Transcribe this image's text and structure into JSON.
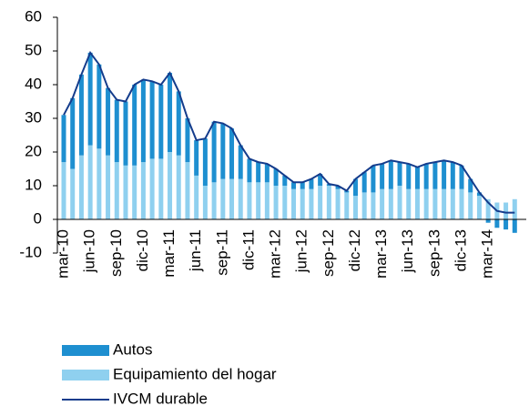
{
  "chart_data": {
    "type": "bar",
    "stacked": true,
    "categories": [
      "mar-10",
      null,
      null,
      "jun-10",
      null,
      null,
      "sep-10",
      null,
      null,
      "dic-10",
      null,
      null,
      "mar-11",
      null,
      null,
      "jun-11",
      null,
      null,
      "sep-11",
      null,
      null,
      "dic-11",
      null,
      null,
      "mar-12",
      null,
      null,
      "jun-12",
      null,
      null,
      "sep-12",
      null,
      null,
      "dic-12",
      null,
      null,
      "mar-13",
      null,
      null,
      "jun-13",
      null,
      null,
      "sep-13",
      null,
      null,
      "dic-13",
      null,
      null,
      "mar-14",
      null,
      null,
      null
    ],
    "series": [
      {
        "name": "Autos",
        "color": "#1e8fd0",
        "type": "bar",
        "values": [
          14,
          21,
          24,
          27.5,
          25,
          20,
          18.5,
          19,
          24,
          24.5,
          23,
          22,
          23.5,
          19,
          13,
          10.5,
          14,
          18,
          16.5,
          15,
          10,
          7,
          6,
          5.5,
          5,
          3,
          2,
          2,
          3,
          3.5,
          0.5,
          1,
          0.5,
          5,
          6,
          8,
          7.5,
          8.5,
          7,
          7.5,
          6.5,
          7.5,
          8,
          8.5,
          8,
          7,
          4,
          1,
          -1,
          -2.5,
          -3,
          -4
        ]
      },
      {
        "name": "Equipamiento del hogar",
        "color": "#8fd0ef",
        "type": "bar",
        "values": [
          17,
          15,
          19,
          22,
          21,
          19,
          17,
          16,
          16,
          17,
          18,
          18,
          20,
          19,
          17,
          13,
          10,
          11,
          12,
          12,
          12,
          11,
          11,
          11,
          10,
          10,
          9,
          9,
          9,
          10,
          10,
          9,
          8,
          7,
          8,
          8,
          9,
          9,
          10,
          9,
          9,
          9,
          9,
          9,
          9,
          9,
          8,
          7,
          6,
          5,
          5,
          6
        ]
      },
      {
        "name": "IVCM durable",
        "color": "#143c8c",
        "type": "line",
        "values": [
          31,
          36,
          43,
          49.5,
          46,
          39,
          35.5,
          35,
          40,
          41.5,
          41,
          40,
          43.5,
          38,
          30,
          23.5,
          24,
          29,
          28.5,
          27,
          22,
          18,
          17,
          16.5,
          15,
          13,
          11,
          11,
          12,
          13.5,
          10.5,
          10,
          8.5,
          12,
          14,
          16,
          16.5,
          17.5,
          17,
          16.5,
          15.5,
          16.5,
          17,
          17.5,
          17,
          16,
          12,
          8,
          5,
          2.5,
          2,
          2
        ]
      }
    ],
    "ylim": [
      -10,
      60
    ],
    "yticks": [
      -10,
      0,
      10,
      20,
      30,
      40,
      50,
      60
    ],
    "grid": false
  }
}
